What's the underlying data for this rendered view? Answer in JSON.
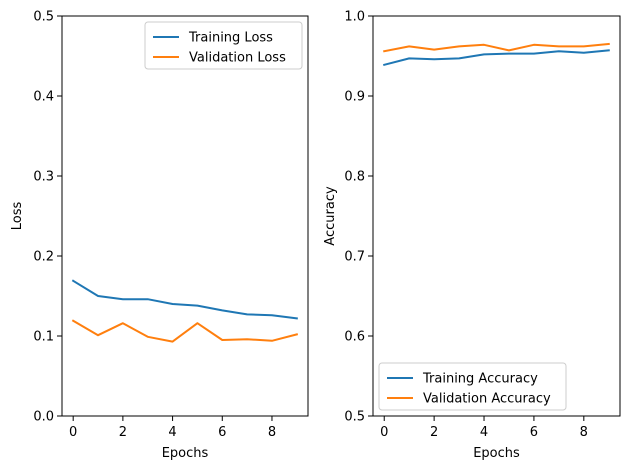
{
  "colors": {
    "training": "#1f77b4",
    "validation": "#ff7f0e",
    "axes": "#000000",
    "legend_border": "#cccccc"
  },
  "chart_data": [
    {
      "type": "line",
      "xlabel": "Epochs",
      "ylabel": "Loss",
      "xlim": [
        -0.45,
        9.45
      ],
      "ylim": [
        0.0,
        0.5
      ],
      "xticks": [
        0,
        2,
        4,
        6,
        8
      ],
      "xtick_labels": [
        "0",
        "2",
        "4",
        "6",
        "8"
      ],
      "yticks": [
        0.0,
        0.1,
        0.2,
        0.3,
        0.4,
        0.5
      ],
      "ytick_labels": [
        "0.0",
        "0.1",
        "0.2",
        "0.3",
        "0.4",
        "0.5"
      ],
      "grid": false,
      "legend_position": "top-right",
      "x": [
        0,
        1,
        2,
        3,
        4,
        5,
        6,
        7,
        8,
        9
      ],
      "series": [
        {
          "name": "Training Loss",
          "color": "#1f77b4",
          "values": [
            0.169,
            0.15,
            0.146,
            0.146,
            0.14,
            0.138,
            0.132,
            0.127,
            0.126,
            0.122
          ]
        },
        {
          "name": "Validation Loss",
          "color": "#ff7f0e",
          "values": [
            0.119,
            0.101,
            0.116,
            0.099,
            0.093,
            0.116,
            0.095,
            0.096,
            0.094,
            0.102
          ]
        }
      ]
    },
    {
      "type": "line",
      "xlabel": "Epochs",
      "ylabel": "Accuracy",
      "xlim": [
        -0.45,
        9.45
      ],
      "ylim": [
        0.5,
        1.0
      ],
      "xticks": [
        0,
        2,
        4,
        6,
        8
      ],
      "xtick_labels": [
        "0",
        "2",
        "4",
        "6",
        "8"
      ],
      "yticks": [
        0.5,
        0.6,
        0.7,
        0.8,
        0.9,
        1.0
      ],
      "ytick_labels": [
        "0.5",
        "0.6",
        "0.7",
        "0.8",
        "0.9",
        "1.0"
      ],
      "grid": false,
      "legend_position": "bottom-left",
      "x": [
        0,
        1,
        2,
        3,
        4,
        5,
        6,
        7,
        8,
        9
      ],
      "series": [
        {
          "name": "Training Accuracy",
          "color": "#1f77b4",
          "values": [
            0.939,
            0.947,
            0.946,
            0.947,
            0.952,
            0.953,
            0.953,
            0.956,
            0.954,
            0.957
          ]
        },
        {
          "name": "Validation Accuracy",
          "color": "#ff7f0e",
          "values": [
            0.956,
            0.962,
            0.958,
            0.962,
            0.964,
            0.957,
            0.964,
            0.962,
            0.962,
            0.965
          ]
        }
      ]
    }
  ]
}
